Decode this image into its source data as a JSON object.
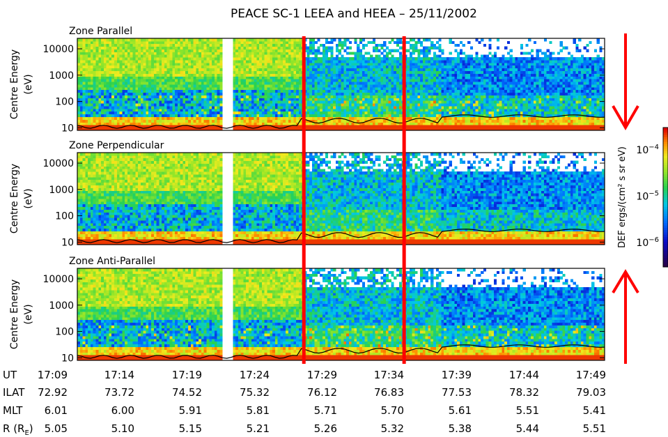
{
  "chart_data": {
    "type": "heatmap",
    "title": "PEACE SC-1 LEEA and HEEA – 25/11/2002",
    "panels": [
      {
        "name": "Zone Parallel"
      },
      {
        "name": "Zone Perpendicular"
      },
      {
        "name": "Zone Anti-Parallel"
      }
    ],
    "ylabel_line1": "Centre Energy",
    "ylabel_line2": "(eV)",
    "yscale": "log",
    "ylim": [
      8,
      25000
    ],
    "yticks": [
      {
        "value": 10,
        "label": "10"
      },
      {
        "value": 100,
        "label": "100"
      },
      {
        "value": 1000,
        "label": "1000"
      },
      {
        "value": 10000,
        "label": "10000"
      }
    ],
    "xlim_minutes": [
      9,
      49.5
    ],
    "data_gap_minutes": [
      20.2,
      20.9
    ],
    "marker_lines_minutes": [
      26.4,
      34.1
    ],
    "colorbar": {
      "label": "DEF ergs/(cm² s sr eV)",
      "scale": "log",
      "range": [
        3e-07,
        0.0003
      ],
      "ticks": [
        {
          "value": 1e-06,
          "base": "10",
          "exp": "−6"
        },
        {
          "value": 1e-05,
          "base": "10",
          "exp": "−5"
        },
        {
          "value": 0.0001,
          "base": "10",
          "exp": "−4"
        }
      ]
    },
    "annotation_rows": [
      {
        "label": "UT",
        "values": [
          "17:09",
          "17:14",
          "17:19",
          "17:24",
          "17:29",
          "17:34",
          "17:39",
          "17:44",
          "17:49"
        ]
      },
      {
        "label": "ILAT",
        "values": [
          "72.92",
          "73.72",
          "74.52",
          "75.32",
          "76.12",
          "76.83",
          "77.53",
          "78.32",
          "79.03"
        ]
      },
      {
        "label": "MLT",
        "values": [
          "6.01",
          "6.00",
          "5.91",
          "5.81",
          "5.71",
          "5.70",
          "5.61",
          "5.51",
          "5.41"
        ]
      },
      {
        "label": "R (R",
        "label_sub": "E",
        "label_end": ")",
        "values": [
          "5.05",
          "5.10",
          "5.15",
          "5.21",
          "5.26",
          "5.32",
          "5.38",
          "5.44",
          "5.51"
        ]
      }
    ],
    "arrows": {
      "top": "down",
      "bottom": "up"
    }
  }
}
